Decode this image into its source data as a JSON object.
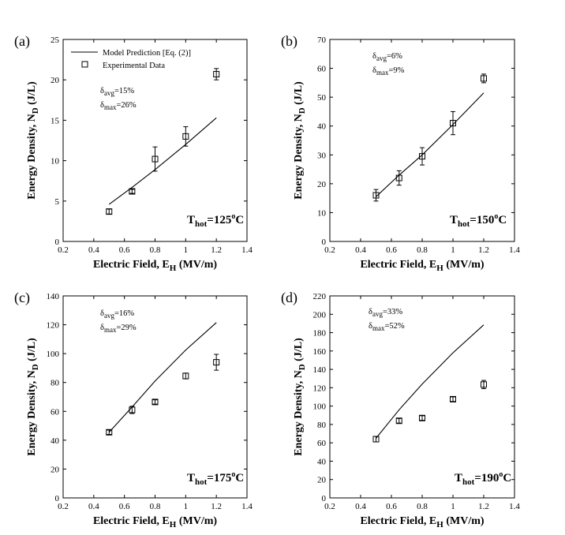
{
  "chart_data": [
    {
      "type": "line",
      "panel_label": "(a)",
      "xlabel": "Electric Field, E",
      "xlabel_sub": "H",
      "xlabel_unit": " (MV/m)",
      "ylabel": "Energy Density, N",
      "ylabel_sub": "D",
      "ylabel_unit": " (J/L)",
      "xlim": [
        0.2,
        1.4
      ],
      "xticks": [
        0.2,
        0.4,
        0.6,
        0.8,
        1,
        1.2,
        1.4
      ],
      "ylim": [
        0,
        25
      ],
      "yticks": [
        0,
        5,
        10,
        15,
        20,
        25
      ],
      "legend": {
        "model": "Model Prediction [Eq. (2)]",
        "experimental": "Experimental Data"
      },
      "stats": {
        "avg_prefix": "δ",
        "avg_sub": "avg",
        "avg_value": "=15%",
        "max_prefix": "δ",
        "max_sub": "max",
        "max_value": "=26%"
      },
      "temperature": {
        "prefix": "T",
        "sub": "hot",
        "value": "=125",
        "sup": "o",
        "unit": "C"
      },
      "model": {
        "x": [
          0.5,
          0.65,
          0.8,
          1.0,
          1.2
        ],
        "y": [
          4.6,
          6.7,
          8.9,
          12.0,
          15.3
        ]
      },
      "experimental": {
        "x": [
          0.5,
          0.65,
          0.8,
          1.0,
          1.2
        ],
        "y": [
          3.7,
          6.2,
          10.2,
          13.0,
          20.7
        ],
        "err": [
          0.3,
          0.25,
          1.5,
          1.2,
          0.7
        ]
      }
    },
    {
      "type": "line",
      "panel_label": "(b)",
      "xlabel": "Electric Field, E",
      "xlabel_sub": "H",
      "xlabel_unit": " (MV/m)",
      "ylabel": "Energy Density, N",
      "ylabel_sub": "D",
      "ylabel_unit": " (J/L)",
      "xlim": [
        0.2,
        1.4
      ],
      "xticks": [
        0.2,
        0.4,
        0.6,
        0.8,
        1,
        1.2,
        1.4
      ],
      "ylim": [
        0,
        70
      ],
      "yticks": [
        0,
        10,
        20,
        30,
        40,
        50,
        60,
        70
      ],
      "stats": {
        "avg_prefix": "δ",
        "avg_sub": "avg",
        "avg_value": "=6%",
        "max_prefix": "δ",
        "max_sub": "max",
        "max_value": "=9%"
      },
      "temperature": {
        "prefix": "T",
        "sub": "hot",
        "value": "=150",
        "sup": "o",
        "unit": "C"
      },
      "model": {
        "x": [
          0.5,
          0.65,
          0.8,
          1.0,
          1.2
        ],
        "y": [
          15.5,
          23.0,
          30.0,
          40.5,
          51.5
        ]
      },
      "experimental": {
        "x": [
          0.5,
          0.65,
          0.8,
          1.0,
          1.2
        ],
        "y": [
          16.0,
          22.0,
          29.5,
          41.0,
          56.5
        ],
        "err": [
          2.0,
          2.5,
          3.0,
          4.0,
          1.5
        ]
      }
    },
    {
      "type": "line",
      "panel_label": "(c)",
      "xlabel": "Electric Field, E",
      "xlabel_sub": "H",
      "xlabel_unit": " (MV/m)",
      "ylabel": "Energy Density, N",
      "ylabel_sub": "D",
      "ylabel_unit": " (J/L)",
      "xlim": [
        0.2,
        1.4
      ],
      "xticks": [
        0.2,
        0.4,
        0.6,
        0.8,
        1,
        1.2,
        1.4
      ],
      "ylim": [
        0,
        140
      ],
      "yticks": [
        0,
        20,
        40,
        60,
        80,
        100,
        120,
        140
      ],
      "stats": {
        "avg_prefix": "δ",
        "avg_sub": "avg",
        "avg_value": "=16%",
        "max_prefix": "δ",
        "max_sub": "max",
        "max_value": "=29%"
      },
      "temperature": {
        "prefix": "T",
        "sub": "hot",
        "value": "=175",
        "sup": "o",
        "unit": "C"
      },
      "model": {
        "x": [
          0.5,
          0.65,
          0.8,
          1.0,
          1.2
        ],
        "y": [
          45.5,
          63.0,
          81.0,
          102.5,
          121.5
        ]
      },
      "experimental": {
        "x": [
          0.5,
          0.65,
          0.8,
          1.0,
          1.2
        ],
        "y": [
          45.5,
          61.0,
          66.5,
          84.5,
          94.0
        ],
        "err": [
          1.5,
          2.5,
          1.5,
          2.0,
          5.5
        ]
      }
    },
    {
      "type": "line",
      "panel_label": "(d)",
      "xlabel": "Electric Field, E",
      "xlabel_sub": "H",
      "xlabel_unit": " (MV/m)",
      "ylabel": "Energy Density, N",
      "ylabel_sub": "D",
      "ylabel_unit": " (J/L)",
      "xlim": [
        0.2,
        1.4
      ],
      "xticks": [
        0.2,
        0.4,
        0.6,
        0.8,
        1,
        1.2,
        1.4
      ],
      "ylim": [
        0,
        220
      ],
      "yticks": [
        0,
        20,
        40,
        60,
        80,
        100,
        120,
        140,
        160,
        180,
        200,
        220
      ],
      "stats": {
        "avg_prefix": "δ",
        "avg_sub": "avg",
        "avg_value": "=33%",
        "max_prefix": "δ",
        "max_sub": "max",
        "max_value": "=52%"
      },
      "temperature": {
        "prefix": "T",
        "sub": "hot",
        "value": "=190",
        "sup": "o",
        "unit": "C"
      },
      "model": {
        "x": [
          0.5,
          0.65,
          0.8,
          1.0,
          1.2
        ],
        "y": [
          65.0,
          96.0,
          124.0,
          158.0,
          188.5
        ]
      },
      "experimental": {
        "x": [
          0.5,
          0.65,
          0.8,
          1.0,
          1.2
        ],
        "y": [
          64.0,
          84.0,
          87.0,
          107.5,
          123.5
        ],
        "err": [
          3.0,
          2.5,
          2.5,
          2.5,
          4.5
        ]
      }
    }
  ]
}
